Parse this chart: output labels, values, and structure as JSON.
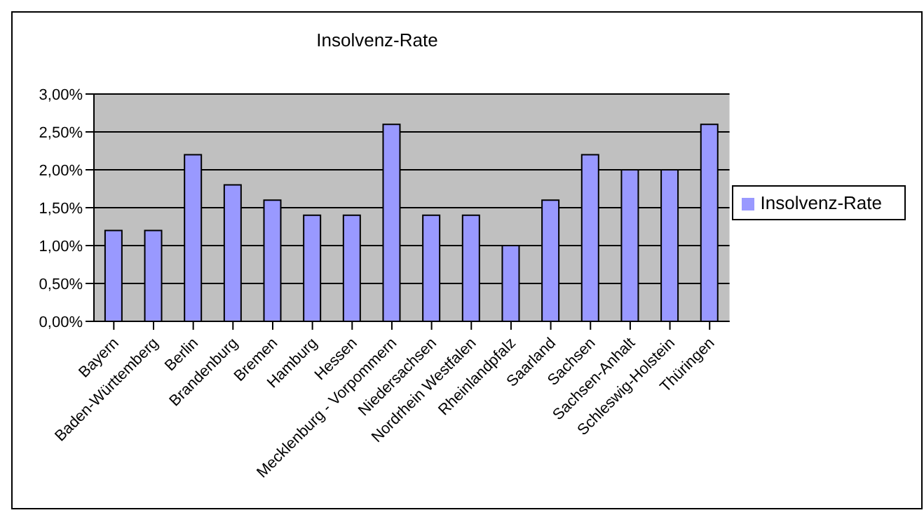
{
  "chart_data": {
    "type": "bar",
    "title": "Insolvenz-Rate",
    "categories": [
      "Bayern",
      "Baden-Württemberg",
      "Berlin",
      "Brandenburg",
      "Bremen",
      "Hamburg",
      "Hessen",
      "Mecklenburg - Vorpommern",
      "Niedersachsen",
      "Nordrhein Westfalen",
      "Rheinlandpfalz",
      "Saarland",
      "Sachsen",
      "Sachsen-Anhalt",
      "Schleswig-Holstein",
      "Thüringen"
    ],
    "series": [
      {
        "name": "Insolvenz-Rate",
        "color": "#9999ff",
        "values": [
          1.2,
          1.2,
          2.2,
          1.8,
          1.6,
          1.4,
          1.4,
          2.6,
          1.4,
          1.4,
          1.0,
          1.6,
          2.2,
          2.0,
          2.0,
          2.6
        ]
      }
    ],
    "ylim": [
      0,
      3
    ],
    "yticks": [
      {
        "value": 0,
        "label": "0,00%"
      },
      {
        "value": 0.5,
        "label": "0,50%"
      },
      {
        "value": 1,
        "label": "1,00%"
      },
      {
        "value": 1.5,
        "label": "1,50%"
      },
      {
        "value": 2,
        "label": "2,00%"
      },
      {
        "value": 2.5,
        "label": "2,50%"
      },
      {
        "value": 3,
        "label": "3,00%"
      }
    ],
    "grid": "y",
    "legend": "right"
  }
}
